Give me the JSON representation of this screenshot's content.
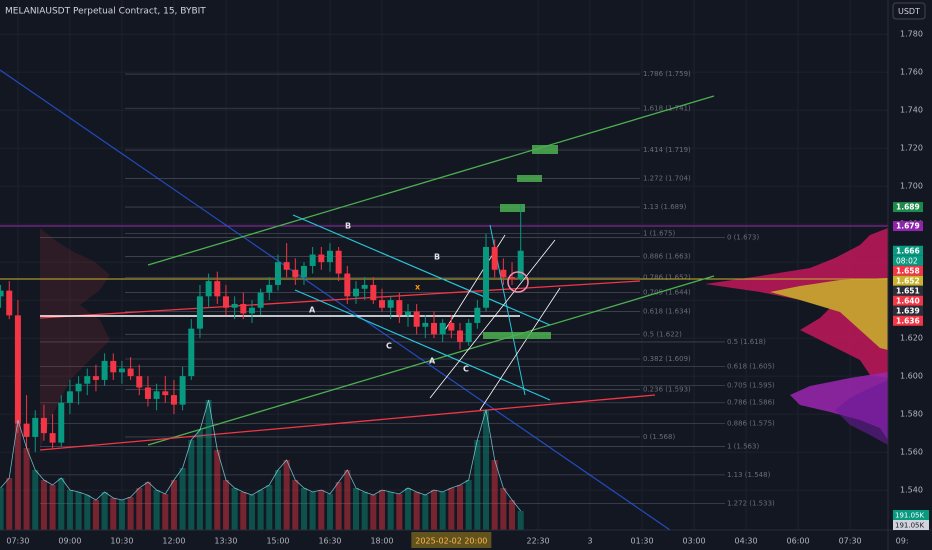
{
  "chart_data": {
    "type": "candlestick",
    "title": "MELANIAUSDT Perpetual Contract, 15, BYBIT",
    "currency_button": "USDT",
    "x": [
      420,
      435,
      450,
      465,
      480,
      495,
      510,
      525,
      540,
      555,
      570,
      585,
      600,
      615,
      630,
      645,
      660,
      675,
      690,
      705,
      720,
      735,
      750,
      765,
      780,
      795,
      810,
      825,
      840,
      855,
      870,
      885,
      900,
      915,
      930,
      945,
      960,
      975,
      990,
      1005,
      1020,
      1035,
      1050,
      1065,
      1080,
      1095,
      1110,
      1125,
      1140,
      1155,
      1170,
      1185,
      1200,
      1215,
      1230,
      1245,
      1260,
      1275,
      1290,
      1305,
      1320
    ],
    "candles": [
      [
        1.642,
        1.648,
        1.636,
        1.645
      ],
      [
        1.645,
        1.65,
        1.63,
        1.632
      ],
      [
        1.632,
        1.64,
        1.57,
        1.575
      ],
      [
        1.575,
        1.59,
        1.562,
        1.568
      ],
      [
        1.568,
        1.582,
        1.56,
        1.578
      ],
      [
        1.578,
        1.585,
        1.566,
        1.57
      ],
      [
        1.57,
        1.58,
        1.562,
        1.565
      ],
      [
        1.565,
        1.59,
        1.563,
        1.586
      ],
      [
        1.586,
        1.598,
        1.58,
        1.592
      ],
      [
        1.592,
        1.6,
        1.585,
        1.596
      ],
      [
        1.596,
        1.604,
        1.59,
        1.6
      ],
      [
        1.6,
        1.606,
        1.592,
        1.598
      ],
      [
        1.598,
        1.612,
        1.595,
        1.608
      ],
      [
        1.608,
        1.612,
        1.598,
        1.602
      ],
      [
        1.602,
        1.608,
        1.596,
        1.604
      ],
      [
        1.604,
        1.61,
        1.598,
        1.6
      ],
      [
        1.6,
        1.606,
        1.59,
        1.594
      ],
      [
        1.594,
        1.6,
        1.584,
        1.588
      ],
      [
        1.588,
        1.596,
        1.582,
        1.592
      ],
      [
        1.592,
        1.6,
        1.586,
        1.59
      ],
      [
        1.59,
        1.598,
        1.58,
        1.585
      ],
      [
        1.585,
        1.605,
        1.582,
        1.6
      ],
      [
        1.6,
        1.63,
        1.598,
        1.625
      ],
      [
        1.625,
        1.648,
        1.62,
        1.642
      ],
      [
        1.642,
        1.654,
        1.636,
        1.65
      ],
      [
        1.65,
        1.655,
        1.638,
        1.642
      ],
      [
        1.642,
        1.648,
        1.632,
        1.636
      ],
      [
        1.636,
        1.642,
        1.63,
        1.638
      ],
      [
        1.638,
        1.644,
        1.63,
        1.633
      ],
      [
        1.633,
        1.64,
        1.628,
        1.636
      ],
      [
        1.636,
        1.646,
        1.632,
        1.644
      ],
      [
        1.644,
        1.652,
        1.64,
        1.648
      ],
      [
        1.648,
        1.664,
        1.645,
        1.66
      ],
      [
        1.66,
        1.67,
        1.652,
        1.656
      ],
      [
        1.656,
        1.662,
        1.648,
        1.652
      ],
      [
        1.652,
        1.66,
        1.648,
        1.658
      ],
      [
        1.658,
        1.668,
        1.654,
        1.664
      ],
      [
        1.664,
        1.668,
        1.656,
        1.66
      ],
      [
        1.66,
        1.67,
        1.655,
        1.666
      ],
      [
        1.666,
        1.668,
        1.65,
        1.654
      ],
      [
        1.654,
        1.658,
        1.638,
        1.642
      ],
      [
        1.642,
        1.65,
        1.638,
        1.646
      ],
      [
        1.646,
        1.652,
        1.64,
        1.648
      ],
      [
        1.648,
        1.652,
        1.638,
        1.64
      ],
      [
        1.64,
        1.646,
        1.634,
        1.636
      ],
      [
        1.636,
        1.642,
        1.63,
        1.64
      ],
      [
        1.64,
        1.644,
        1.628,
        1.632
      ],
      [
        1.632,
        1.638,
        1.626,
        1.634
      ],
      [
        1.634,
        1.638,
        1.622,
        1.626
      ],
      [
        1.626,
        1.632,
        1.62,
        1.628
      ],
      [
        1.628,
        1.634,
        1.62,
        1.622
      ],
      [
        1.622,
        1.63,
        1.618,
        1.628
      ],
      [
        1.628,
        1.632,
        1.62,
        1.624
      ],
      [
        1.624,
        1.628,
        1.614,
        1.618
      ],
      [
        1.618,
        1.63,
        1.616,
        1.628
      ],
      [
        1.628,
        1.64,
        1.625,
        1.636
      ],
      [
        1.636,
        1.675,
        1.634,
        1.668
      ],
      [
        1.668,
        1.672,
        1.652,
        1.656
      ],
      [
        1.656,
        1.662,
        1.648,
        1.652
      ],
      [
        1.652,
        1.66,
        1.648,
        1.651
      ],
      [
        1.651,
        1.69,
        1.65,
        1.666
      ]
    ],
    "volumes": [
      420,
      520,
      1100,
      820,
      600,
      500,
      450,
      520,
      400,
      380,
      350,
      300,
      380,
      320,
      300,
      330,
      420,
      480,
      400,
      360,
      500,
      620,
      900,
      1000,
      1300,
      800,
      500,
      420,
      380,
      350,
      400,
      450,
      600,
      700,
      500,
      420,
      380,
      400,
      360,
      480,
      600,
      420,
      380,
      350,
      400,
      380,
      360,
      420,
      380,
      350,
      400,
      380,
      420,
      450,
      500,
      900,
      1200,
      700,
      420,
      300,
      191.05
    ],
    "volume_label": "191.05K",
    "up_color": "#089981",
    "down_color": "#f23645",
    "xlim": [
      419,
      1985
    ],
    "ylim": [
      1.519,
      1.798
    ],
    "yticks": [
      {
        "value": 1.54,
        "label": "1.540"
      },
      {
        "value": 1.56,
        "label": "1.560"
      },
      {
        "value": 1.58,
        "label": "1.580"
      },
      {
        "value": 1.6,
        "label": "1.600"
      },
      {
        "value": 1.62,
        "label": "1.620"
      },
      {
        "value": 1.64,
        "label": "1.640"
      },
      {
        "value": 1.66,
        "label": "1.660"
      },
      {
        "value": 1.68,
        "label": "1.680"
      },
      {
        "value": 1.7,
        "label": "1.700"
      },
      {
        "value": 1.72,
        "label": "1.720"
      },
      {
        "value": 1.74,
        "label": "1.740"
      },
      {
        "value": 1.76,
        "label": "1.760"
      },
      {
        "value": 1.78,
        "label": "1.780"
      }
    ],
    "xticks": [
      {
        "value": 450,
        "label": "07:30"
      },
      {
        "value": 540,
        "label": "09:00"
      },
      {
        "value": 630,
        "label": "10:30"
      },
      {
        "value": 720,
        "label": "12:00"
      },
      {
        "value": 810,
        "label": "13:30"
      },
      {
        "value": 900,
        "label": "15:00"
      },
      {
        "value": 990,
        "label": "16:30"
      },
      {
        "value": 1080,
        "label": "18:00"
      },
      {
        "value": 1350,
        "label": "22:30"
      },
      {
        "value": 1440,
        "label": "3"
      },
      {
        "value": 1530,
        "label": "01:30"
      },
      {
        "value": 1620,
        "label": "03:00"
      },
      {
        "value": 1710,
        "label": "04:30"
      },
      {
        "value": 1800,
        "label": "06:00"
      },
      {
        "value": 1890,
        "label": "07:30"
      },
      {
        "value": 1980,
        "label": "09:"
      }
    ],
    "crosshair_time": {
      "value": 1200,
      "label": "2025-02-02 20:00"
    },
    "fib_levels": [
      {
        "label": "1.786 (1.759)",
        "value": 1.759
      },
      {
        "label": "1.618 (1.741)",
        "value": 1.741
      },
      {
        "label": "1.414 (1.719)",
        "value": 1.719
      },
      {
        "label": "1.272 (1.704)",
        "value": 1.704
      },
      {
        "label": "1.13 (1.689)",
        "value": 1.689
      },
      {
        "label": "1 (1.675)",
        "value": 1.675
      },
      {
        "label": "0.886 (1.663)",
        "value": 1.663
      },
      {
        "label": "0.786 (1.652)",
        "value": 1.652
      },
      {
        "label": "0.705 (1.644)",
        "value": 1.644
      },
      {
        "label": "0.618 (1.634)",
        "value": 1.634
      },
      {
        "label": "0.5 (1.622)",
        "value": 1.622
      },
      {
        "label": "0.382 (1.609)",
        "value": 1.609
      },
      {
        "label": "0.236 (1.593)",
        "value": 1.593
      },
      {
        "label": "0 (1.568)",
        "value": 1.568
      }
    ],
    "fib_levels_2": [
      {
        "label": "0 (1.673)",
        "value": 1.673
      },
      {
        "label": "0.5 (1.618)",
        "value": 1.618
      },
      {
        "label": "0.618 (1.605)",
        "value": 1.605
      },
      {
        "label": "0.705 (1.595)",
        "value": 1.595
      },
      {
        "label": "0.786 (1.586)",
        "value": 1.586
      },
      {
        "label": "0.886 (1.575)",
        "value": 1.575
      },
      {
        "label": "1 (1.563)",
        "value": 1.563
      },
      {
        "label": "1.13 (1.548)",
        "value": 1.548
      },
      {
        "label": "1.272 (1.533)",
        "value": 1.533
      }
    ],
    "price_labels": [
      {
        "value": 1.689,
        "label": "1.689",
        "color": "#1b8a4a"
      },
      {
        "value": 1.679,
        "label": "1.679",
        "color": "#8e24aa"
      },
      {
        "value": 1.666,
        "label": "1.666",
        "color": "#089981"
      },
      {
        "value": 1.658,
        "label": "1.658",
        "color": "#f23645"
      },
      {
        "value": 1.652,
        "label": "1.652",
        "color": "#c9b32a"
      },
      {
        "value": 1.651,
        "label": "1.651",
        "color": "#2a2e39"
      },
      {
        "value": 1.64,
        "label": "1.640",
        "color": "#f23645"
      },
      {
        "value": 1.639,
        "label": "1.639",
        "color": "#2a2e39"
      },
      {
        "value": 1.636,
        "label": "1.636",
        "color": "#f23645"
      }
    ],
    "countdown": "08:02",
    "annotations": [
      "B",
      "B",
      "x",
      "A",
      "C",
      "A",
      "C"
    ]
  }
}
